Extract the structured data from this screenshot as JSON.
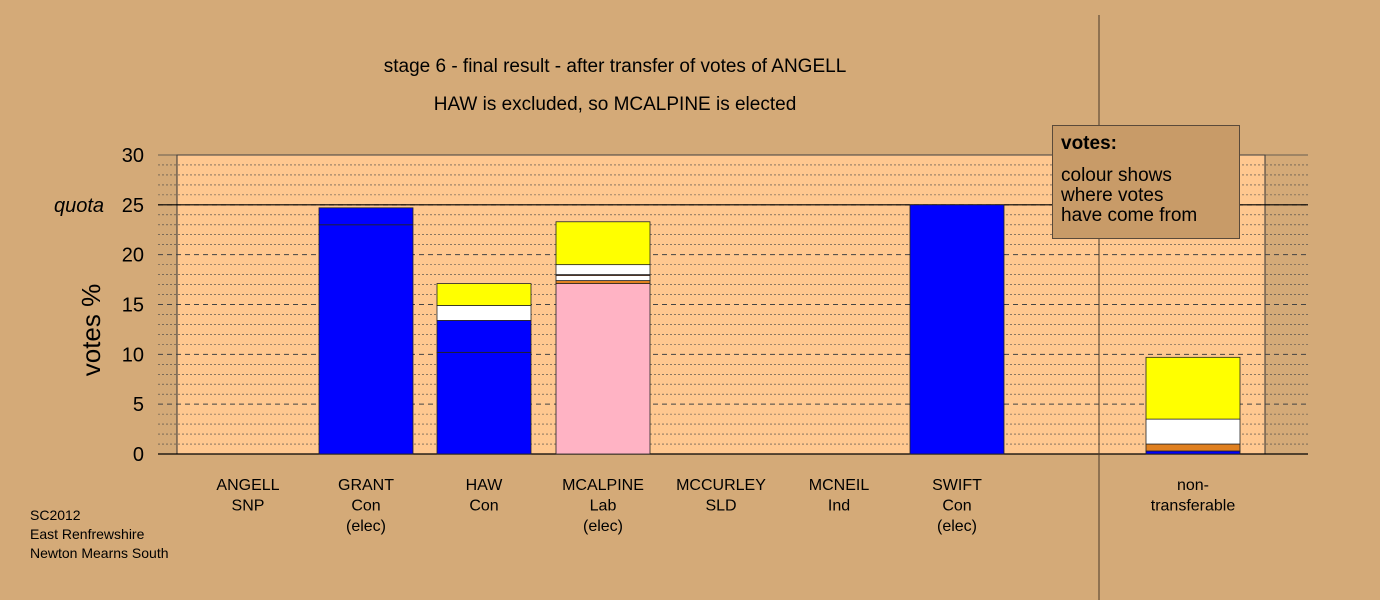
{
  "chart_data": {
    "type": "bar",
    "stacked": true,
    "title": "stage 6 - final result - after transfer of votes of ANGELL",
    "subtitle": "HAW is excluded, so MCALPINE is elected",
    "ylabel": "votes %",
    "ylim": [
      0,
      30
    ],
    "yticks": [
      "0",
      "5",
      "10",
      "15",
      "20",
      "25",
      "30"
    ],
    "quota_label": "quota",
    "quota": 25,
    "categories": [
      {
        "name": "ANGELL",
        "party": "SNP",
        "note": ""
      },
      {
        "name": "GRANT",
        "party": "Con",
        "note": "(elec)"
      },
      {
        "name": "HAW",
        "party": "Con",
        "note": ""
      },
      {
        "name": "MCALPINE",
        "party": "Lab",
        "note": "(elec)"
      },
      {
        "name": "MCCURLEY",
        "party": "SLD",
        "note": ""
      },
      {
        "name": "MCNEIL",
        "party": "Ind",
        "note": ""
      },
      {
        "name": "SWIFT",
        "party": "Con",
        "note": "(elec)"
      },
      {
        "name": "non-",
        "party": "transferable",
        "note": ""
      }
    ],
    "bars": [
      [],
      [
        {
          "v": 23.0,
          "color": "#0000ff"
        },
        {
          "v": 1.7,
          "color": "#0000ff"
        }
      ],
      [
        {
          "v": 10.2,
          "color": "#0000ff"
        },
        {
          "v": 3.2,
          "color": "#0000ff"
        },
        {
          "v": 1.5,
          "color": "#ffffff"
        },
        {
          "v": 2.2,
          "color": "#ffff00"
        }
      ],
      [
        {
          "v": 17.1,
          "color": "#ffb3c4"
        },
        {
          "v": 0.3,
          "color": "#e08020"
        },
        {
          "v": 0.5,
          "color": "#ffffff"
        },
        {
          "v": 0.1,
          "color": "#ff8040"
        },
        {
          "v": 1.0,
          "color": "#ffffff"
        },
        {
          "v": 4.3,
          "color": "#ffff00"
        }
      ],
      [],
      [],
      [
        {
          "v": 25.0,
          "color": "#0000ff"
        }
      ],
      [
        {
          "v": 0.3,
          "color": "#0000ff"
        },
        {
          "v": 0.7,
          "color": "#e08020"
        },
        {
          "v": 2.5,
          "color": "#ffffff"
        },
        {
          "v": 6.2,
          "color": "#ffff00"
        }
      ]
    ],
    "grid": true,
    "colors": {
      "background": "#d4aa78",
      "plot_area": "#ffc890",
      "legend_box": "#c89b68"
    }
  },
  "legend": {
    "title": "votes:",
    "lines": [
      "colour shows",
      "where votes",
      "have come from"
    ]
  },
  "footnote": [
    "SC2012",
    "East Renfrewshire",
    "Newton Mearns South"
  ]
}
